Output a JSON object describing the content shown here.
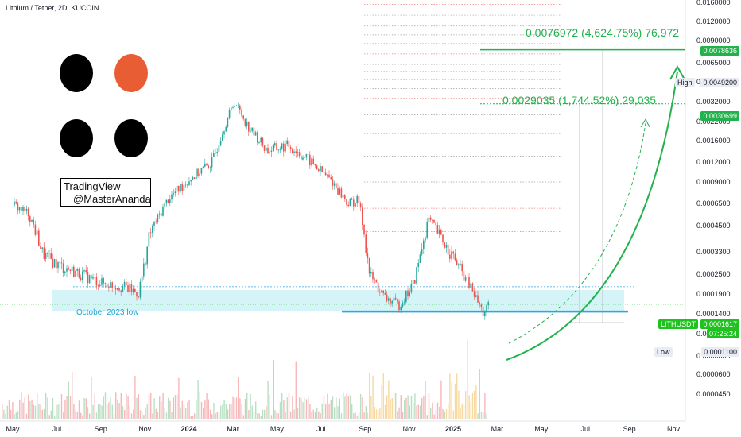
{
  "header": {
    "title": "Lithium / Tether, 2D, KUCOIN"
  },
  "watermark": {
    "line1": "TradingView",
    "line2": "@MasterAnanda"
  },
  "dots": [
    {
      "color": "#000000"
    },
    {
      "color": "#e85d33"
    },
    {
      "color": "#000000"
    },
    {
      "color": "#000000"
    }
  ],
  "annotations": {
    "target1": "0.0076972 (4,624.75%) 76,972",
    "target2": "0.0029035 (1,744.52%) 29,035",
    "zone_label": "October 2023 low"
  },
  "price_tags": {
    "t1": "0.0078636",
    "t2": "0.0030699",
    "high_label": "High",
    "high_value": "0.0049200",
    "symbol": "LITHUSDT",
    "last_price": "0.0001617",
    "countdown": "07:25:24",
    "low_label": "Low",
    "low_value": "0.0001100"
  },
  "colors": {
    "up": "#26a69a",
    "down": "#ef5350",
    "green": "#22b14c",
    "zone": "#b2ebf2",
    "support": "#29a8e0",
    "accent": "#e85d33"
  },
  "chart_data": {
    "type": "candlestick",
    "title": "Lithium / Tether, 2D, KUCOIN",
    "y_axis": {
      "scale": "log",
      "ticks": [
        "0.0160000",
        "0.0120000",
        "0.0090000",
        "0.0065000",
        "0.0045000",
        "0.0032000",
        "0.0022000",
        "0.0016000",
        "0.0012000",
        "0.0009000",
        "0.0006500",
        "0.0004500",
        "0.0003300",
        "0.0002500",
        "0.0001900",
        "0.0001400",
        "0.0001000",
        "0.0000800",
        "0.0000600",
        "0.0000450"
      ]
    },
    "x_axis": {
      "ticks": [
        "May",
        "Jul",
        "Sep",
        "Nov",
        "2024",
        "Mar",
        "May",
        "Jul",
        "Sep",
        "Nov",
        "2025",
        "Mar",
        "May",
        "Jul",
        "Sep",
        "Nov"
      ]
    },
    "price_path": [
      [
        "2023-05-01",
        0.00063
      ],
      [
        "2023-05-20",
        0.00055
      ],
      [
        "2023-06-10",
        0.00032
      ],
      [
        "2023-07-01",
        0.00028
      ],
      [
        "2023-08-01",
        0.00025
      ],
      [
        "2023-09-01",
        0.00022
      ],
      [
        "2023-10-01",
        0.00021
      ],
      [
        "2023-10-20",
        0.00019
      ],
      [
        "2023-11-05",
        0.0004
      ],
      [
        "2023-12-01",
        0.0007
      ],
      [
        "2024-01-01",
        0.00095
      ],
      [
        "2024-02-01",
        0.0012
      ],
      [
        "2024-03-01",
        0.0032
      ],
      [
        "2024-03-20",
        0.002
      ],
      [
        "2024-04-15",
        0.0014
      ],
      [
        "2024-05-15",
        0.0015
      ],
      [
        "2024-06-15",
        0.0012
      ],
      [
        "2024-07-15",
        0.0009
      ],
      [
        "2024-08-05",
        0.00065
      ],
      [
        "2024-08-20",
        0.00068
      ],
      [
        "2024-09-05",
        0.00025
      ],
      [
        "2024-09-25",
        0.00018
      ],
      [
        "2024-10-15",
        0.00016
      ],
      [
        "2024-11-05",
        0.00022
      ],
      [
        "2024-11-25",
        0.0005
      ],
      [
        "2024-12-10",
        0.0004
      ],
      [
        "2025-01-01",
        0.0003
      ],
      [
        "2025-01-25",
        0.0002
      ],
      [
        "2025-02-10",
        0.00014
      ],
      [
        "2025-02-18",
        0.0001617
      ]
    ],
    "levels": {
      "october_2023_low": 0.00021,
      "zone_top": 0.00021,
      "zone_bottom": 0.000145,
      "support": 0.000145,
      "target1": 0.0078636,
      "target2": 0.0030699,
      "high": 0.00492,
      "low": 0.00011,
      "last": 0.0001617
    }
  }
}
